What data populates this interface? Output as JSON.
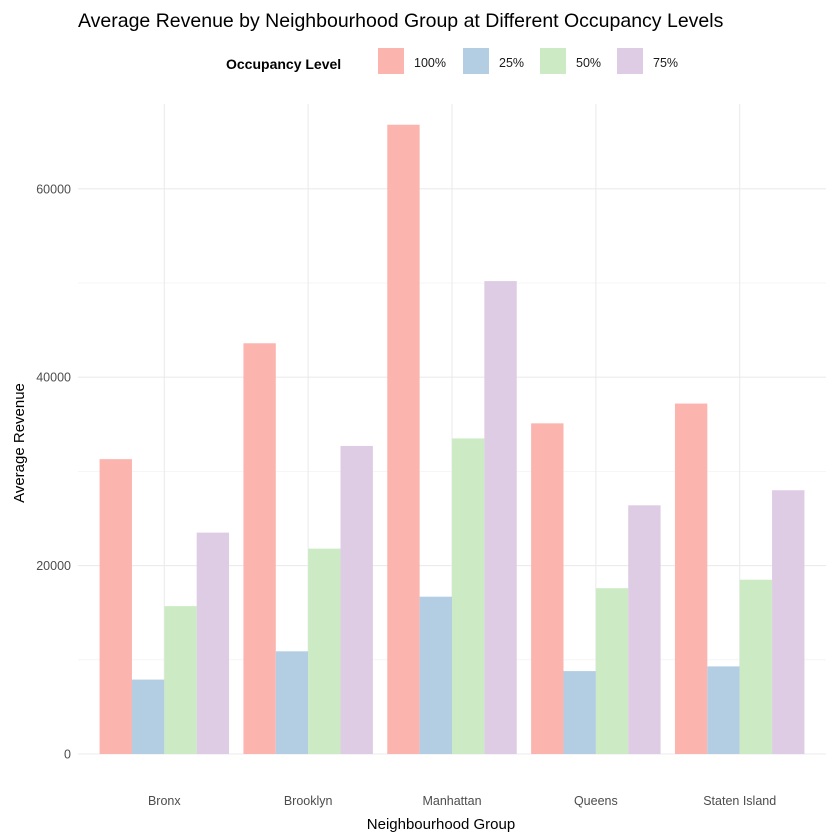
{
  "chart_data": {
    "type": "bar",
    "title": "Average Revenue by Neighbourhood Group at Different Occupancy Levels",
    "xlabel": "Neighbourhood Group",
    "ylabel": "Average Revenue",
    "categories": [
      "Bronx",
      "Brooklyn",
      "Manhattan",
      "Queens",
      "Staten Island"
    ],
    "ylim": [
      0,
      69000
    ],
    "yticks": [
      0,
      20000,
      40000,
      60000
    ],
    "ytick_labels": [
      "0",
      "20000",
      "40000",
      "60000"
    ],
    "grid": true,
    "legend": {
      "title": "Occupancy Level",
      "placement": "top"
    },
    "series": [
      {
        "name": "100%",
        "color": "#fbb4ae",
        "values": [
          31300,
          43600,
          66800,
          35100,
          37200
        ]
      },
      {
        "name": "25%",
        "color": "#b3cde3",
        "values": [
          7900,
          10900,
          16700,
          8800,
          9300
        ]
      },
      {
        "name": "50%",
        "color": "#ccebc5",
        "values": [
          15700,
          21800,
          33500,
          17600,
          18500
        ]
      },
      {
        "name": "75%",
        "color": "#decbe4",
        "values": [
          23500,
          32700,
          50200,
          26400,
          28000
        ]
      }
    ]
  }
}
